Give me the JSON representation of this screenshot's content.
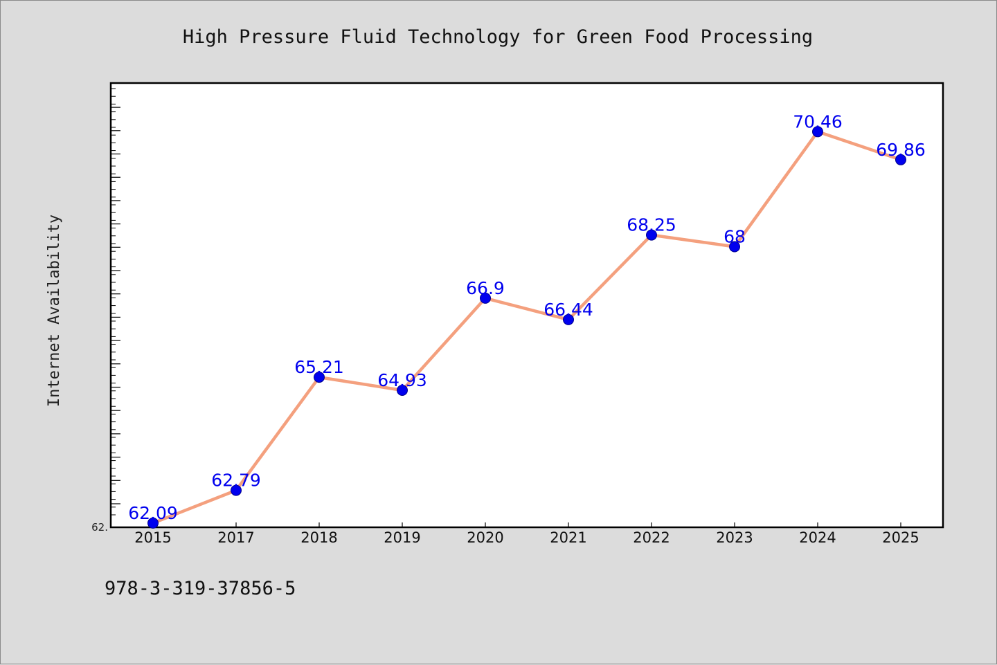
{
  "footnote": "978-3-319-37856-5",
  "chart_data": {
    "type": "line",
    "title": "High Pressure Fluid Technology for Green Food Processing",
    "xlabel": "",
    "ylabel": "Internet Availability",
    "categories": [
      "2015",
      "2017",
      "2018",
      "2019",
      "2020",
      "2021",
      "2022",
      "2023",
      "2024",
      "2025"
    ],
    "series": [
      {
        "values": [
          62.09,
          62.79,
          65.21,
          64.93,
          66.9,
          66.44,
          68.25,
          68,
          70.46,
          69.86
        ],
        "labels": [
          "62.09",
          "62.79",
          "65.21",
          "64.93",
          "66.9",
          "66.44",
          "68.25",
          "68",
          "70.46",
          "69.86"
        ]
      }
    ],
    "ylim": [
      62.0,
      71.5
    ],
    "ytick_label": "62.",
    "grid": false,
    "legend": "none",
    "colors": {
      "line": "#f4a07e",
      "marker": "#0000ee",
      "label": "#0000ee",
      "plot_bg": "#ffffff",
      "frame": "#000000"
    }
  }
}
